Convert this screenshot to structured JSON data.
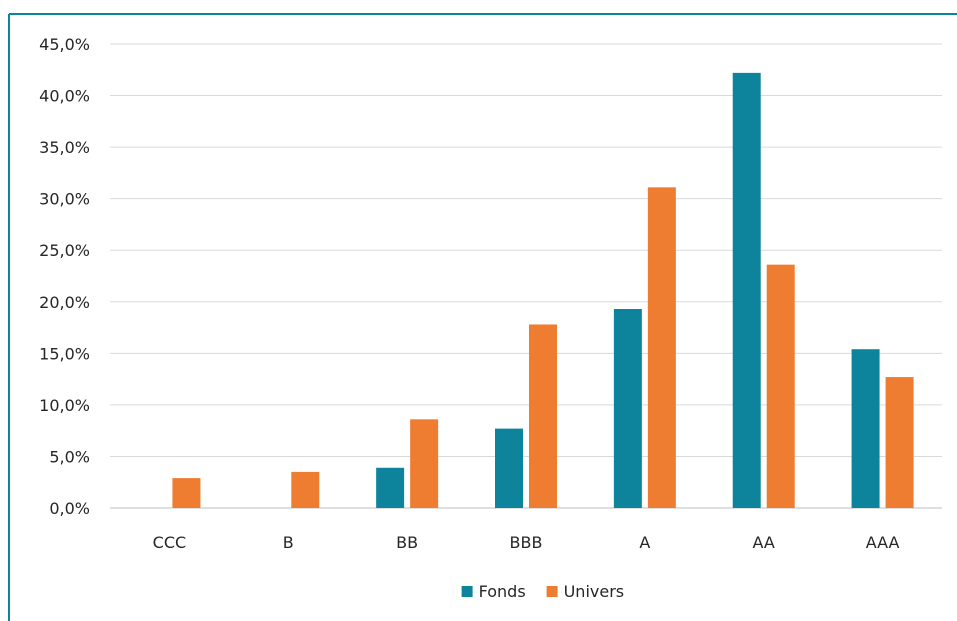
{
  "chart_data": {
    "type": "bar",
    "categories": [
      "CCC",
      "B",
      "BB",
      "BBB",
      "A",
      "AA",
      "AAA"
    ],
    "series": [
      {
        "name": "Fonds",
        "color": "#0E849C",
        "values": [
          0,
          0,
          3.9,
          7.7,
          19.3,
          42.2,
          15.4
        ]
      },
      {
        "name": "Univers",
        "color": "#EE7D32",
        "values": [
          2.9,
          3.5,
          8.6,
          17.8,
          31.1,
          23.6,
          12.7
        ]
      }
    ],
    "ylim": [
      0,
      45
    ],
    "yticks": [
      0,
      5,
      10,
      15,
      20,
      25,
      30,
      35,
      40,
      45
    ],
    "ytick_labels": [
      "0,0%",
      "5,0%",
      "10,0%",
      "15,0%",
      "20,0%",
      "25,0%",
      "30,0%",
      "35,0%",
      "40,0%",
      "45,0%"
    ],
    "grid": true,
    "legend": "bottom",
    "frame_color": "#0E849C",
    "grid_color": "#D9D9D9"
  }
}
